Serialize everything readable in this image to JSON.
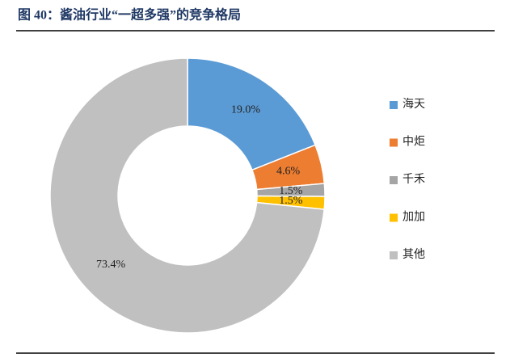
{
  "chart_data": {
    "type": "donut",
    "title": "图 40：酱油行业“一超多强”的竞争格局",
    "categories": [
      "海天",
      "中炬",
      "千禾",
      "加加",
      "其他"
    ],
    "values": [
      19.0,
      4.6,
      1.5,
      1.5,
      73.4
    ],
    "value_labels": [
      "19.0%",
      "4.6%",
      "1.5%",
      "1.5%",
      "73.4%"
    ],
    "colors": [
      "#5b9bd5",
      "#ed7d31",
      "#a5a5a5",
      "#ffc000",
      "#c0c0c0"
    ],
    "legend": "right"
  }
}
